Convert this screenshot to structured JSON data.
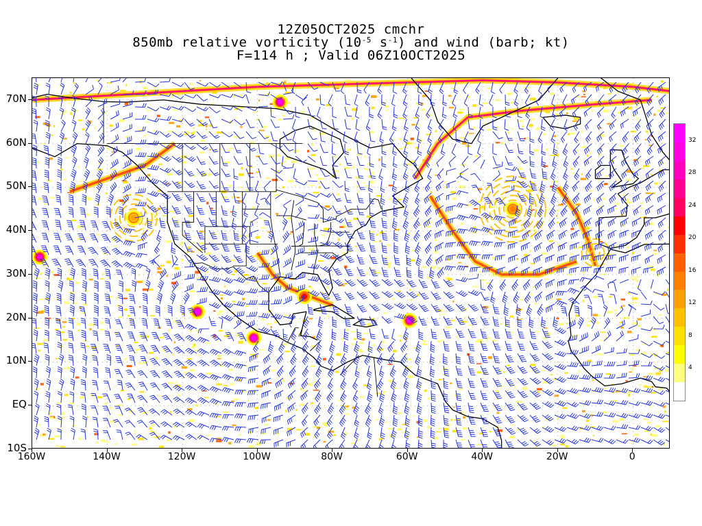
{
  "title": {
    "line1": "12Z05OCT2025 cmchr",
    "line2_prefix": "850mb relative vorticity (10",
    "line2_exp1": "-5",
    "line2_mid": " s",
    "line2_exp2": "-1",
    "line2_suffix": ") and wind (barb; kt)",
    "line3": "F=114 h ; Valid 06Z10OCT2025"
  },
  "map": {
    "projection": "cylindrical equidistant",
    "lon_range": [
      -160,
      10
    ],
    "lat_range": [
      -10,
      75
    ],
    "coastline_color": "#000000",
    "barb_color": "#2233dd",
    "gridline_style": "dotted"
  },
  "axes": {
    "y_labels": [
      {
        "lat": 70,
        "text": "70N"
      },
      {
        "lat": 60,
        "text": "60N"
      },
      {
        "lat": 50,
        "text": "50N"
      },
      {
        "lat": 40,
        "text": "40N"
      },
      {
        "lat": 30,
        "text": "30N"
      },
      {
        "lat": 20,
        "text": "20N"
      },
      {
        "lat": 10,
        "text": "10N"
      },
      {
        "lat": 0,
        "text": "EQ"
      },
      {
        "lat": -10,
        "text": "10S"
      }
    ],
    "x_labels": [
      {
        "lon": -160,
        "text": "160W"
      },
      {
        "lon": -140,
        "text": "140W"
      },
      {
        "lon": -120,
        "text": "120W"
      },
      {
        "lon": -100,
        "text": "100W"
      },
      {
        "lon": -80,
        "text": "80W"
      },
      {
        "lon": -60,
        "text": "60W"
      },
      {
        "lon": -40,
        "text": "40W"
      },
      {
        "lon": -20,
        "text": "20W"
      },
      {
        "lon": 0,
        "text": "0"
      }
    ]
  },
  "colorbar": {
    "colors": [
      "#ffffff",
      "#ffff80",
      "#ffff00",
      "#ffe000",
      "#ffc000",
      "#ffa000",
      "#ff8000",
      "#ff6000",
      "#ff3000",
      "#ff0000",
      "#ff0060",
      "#ff0090",
      "#ff00c0",
      "#ff00e0",
      "#ff00ff"
    ],
    "labels": [
      {
        "value": 4,
        "text": "4"
      },
      {
        "value": 8,
        "text": "8"
      },
      {
        "value": 12,
        "text": "12"
      },
      {
        "value": 16,
        "text": "16"
      },
      {
        "value": 20,
        "text": "20"
      },
      {
        "value": 24,
        "text": "24"
      },
      {
        "value": 28,
        "text": "28"
      },
      {
        "value": 32,
        "text": "32"
      }
    ],
    "min": 0,
    "max": 34
  },
  "vorticity_features": [
    {
      "name": "pacific-tropical-cyclone",
      "lon": -116,
      "lat": 21.5,
      "peak": 34
    },
    {
      "name": "mexico-coast-cyclone",
      "lon": -101,
      "lat": 15.5,
      "peak": 34
    },
    {
      "name": "atlantic-tropical-cyclone",
      "lon": -59.5,
      "lat": 19.5,
      "peak": 34
    },
    {
      "name": "gulf-low",
      "lon": -87.5,
      "lat": 25,
      "peak": 20
    },
    {
      "name": "hawaii-vortex",
      "lon": -158,
      "lat": 34,
      "peak": 30
    },
    {
      "name": "greenland-tip-vortex",
      "lon": -94,
      "lat": 69.5,
      "peak": 34
    },
    {
      "name": "north-atlantic-low",
      "lon": -32,
      "lat": 45,
      "peak": 14
    },
    {
      "name": "gulf-of-alaska-low",
      "lon": -133,
      "lat": 43,
      "peak": 12
    }
  ]
}
